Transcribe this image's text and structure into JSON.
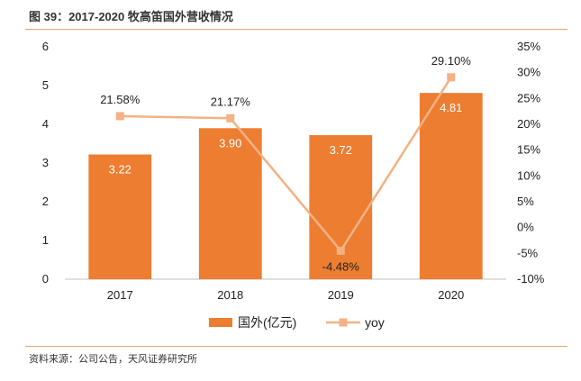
{
  "figure": {
    "title": "图 39：2017-2020 牧高笛国外营收情况",
    "source": "资料来源：公司公告，天风证券研究所"
  },
  "colors": {
    "bar": "#ed7d31",
    "line": "#f4b183",
    "rule": "#e8a36e"
  },
  "chart_data": {
    "type": "bar",
    "categories": [
      "2017",
      "2018",
      "2019",
      "2020"
    ],
    "series": [
      {
        "name": "国外(亿元)",
        "type": "bar",
        "axis": "left",
        "values": [
          3.22,
          3.9,
          3.72,
          4.81
        ],
        "labels": [
          "3.22",
          "3.90",
          "3.72",
          "4.81"
        ]
      },
      {
        "name": "yoy",
        "type": "line",
        "axis": "right",
        "values": [
          21.58,
          21.17,
          -4.48,
          29.1
        ],
        "labels": [
          "21.58%",
          "21.17%",
          "-4.48%",
          "29.10%"
        ]
      }
    ],
    "y_left": {
      "ylim": [
        0,
        6
      ],
      "ticks": [
        "0",
        "1",
        "2",
        "3",
        "4",
        "5",
        "6"
      ]
    },
    "y_right": {
      "ylim": [
        -10,
        35
      ],
      "ticks": [
        "-10%",
        "-5%",
        "0%",
        "5%",
        "10%",
        "15%",
        "20%",
        "25%",
        "30%",
        "35%"
      ]
    },
    "legend": {
      "position": "bottom-center"
    },
    "grid": false
  }
}
